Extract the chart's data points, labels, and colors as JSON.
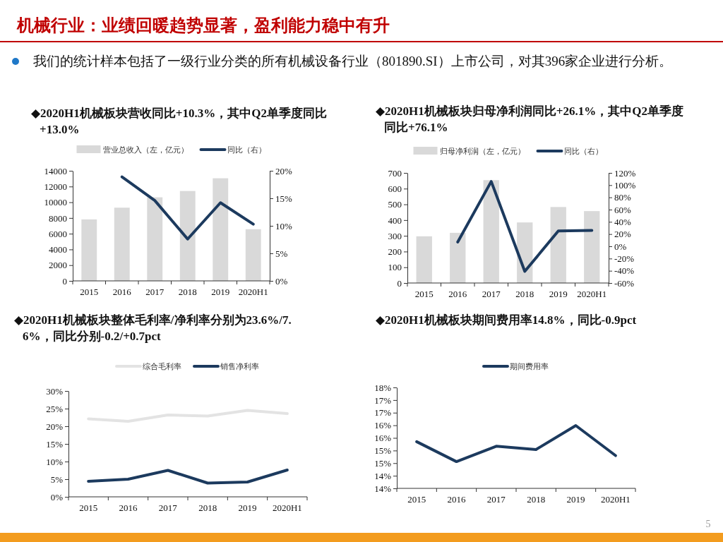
{
  "chart_data": [
    {
      "type": "other",
      "title": "机械行业：业绩回暖趋势显著，盈利能力稳中有升",
      "annotations": [
        "我们的统计样本包括了一级行业分类的所有机械设备行业（801890.SI）上市公司，对其396家企业进行分析。",
        "5"
      ]
    },
    {
      "type": "bar",
      "title": "◆2020H1机械板块营收同比+10.3%，其中Q2单季度同比+13.0%",
      "categories": [
        "2015",
        "2016",
        "2017",
        "2018",
        "2019",
        "2020H1"
      ],
      "legend": "top",
      "series": [
        {
          "name": "营业总收入（左，亿元）",
          "type": "bar",
          "color": "#d9d9d9",
          "values": [
            7820,
            9310,
            10630,
            11430,
            13050,
            6570
          ]
        },
        {
          "name": "同比（右）",
          "type": "line",
          "axis": "y2",
          "color": "#1c3a5e",
          "values": [
            null,
            18.9,
            14.6,
            7.6,
            14.2,
            10.3
          ]
        }
      ],
      "ylim": [
        0,
        14000
      ],
      "yticks": [
        0,
        2000,
        4000,
        6000,
        8000,
        10000,
        12000,
        14000
      ],
      "y2lim": [
        0,
        20
      ],
      "y2ticks": [
        {
          "value": 0,
          "label": "0%"
        },
        {
          "value": 5,
          "label": "5%"
        },
        {
          "value": 10,
          "label": "10%"
        },
        {
          "value": 15,
          "label": "15%"
        },
        {
          "value": 20,
          "label": "20%"
        }
      ]
    },
    {
      "type": "bar",
      "title": "◆2020H1机械板块归母净利润同比+26.1%，其中Q2单季度同比+76.1%",
      "categories": [
        "2015",
        "2016",
        "2017",
        "2018",
        "2019",
        "2020H1"
      ],
      "legend": "top",
      "series": [
        {
          "name": "归母净利润（左，亿元）",
          "type": "bar",
          "color": "#d9d9d9",
          "values": [
            297,
            319,
            654,
            385,
            483,
            457
          ]
        },
        {
          "name": "同比（右）",
          "type": "line",
          "axis": "y2",
          "color": "#1c3a5e",
          "values": [
            null,
            7,
            106,
            -41,
            25,
            26.1
          ]
        }
      ],
      "ylim": [
        0,
        700
      ],
      "yticks": [
        0,
        100,
        200,
        300,
        400,
        500,
        600,
        700
      ],
      "y2lim": [
        -60,
        120
      ],
      "y2ticks": [
        {
          "value": -60,
          "label": "-60%"
        },
        {
          "value": -40,
          "label": "-40%"
        },
        {
          "value": -20,
          "label": "-20%"
        },
        {
          "value": 0,
          "label": "0%"
        },
        {
          "value": 20,
          "label": "20%"
        },
        {
          "value": 40,
          "label": "40%"
        },
        {
          "value": 60,
          "label": "60%"
        },
        {
          "value": 80,
          "label": "80%"
        },
        {
          "value": 100,
          "label": "100%"
        },
        {
          "value": 120,
          "label": "120%"
        }
      ]
    },
    {
      "type": "line",
      "title": "◆2020H1机械板块整体毛利率/净利率分别为23.6%/7.6%，同比分别-0.2/+0.7pct",
      "categories": [
        "2015",
        "2016",
        "2017",
        "2018",
        "2019",
        "2020H1"
      ],
      "legend": "top",
      "series": [
        {
          "name": "综合毛利率",
          "color": "#e3e3e3",
          "values": [
            22.1,
            21.4,
            23.2,
            22.9,
            24.5,
            23.6
          ]
        },
        {
          "name": "销售净利率",
          "color": "#1c3a5e",
          "values": [
            4.4,
            5.0,
            7.5,
            3.9,
            4.2,
            7.6
          ]
        }
      ],
      "ylim": [
        0,
        30
      ],
      "yticks": [
        {
          "value": 0,
          "label": "0%"
        },
        {
          "value": 5,
          "label": "5%"
        },
        {
          "value": 10,
          "label": "10%"
        },
        {
          "value": 15,
          "label": "15%"
        },
        {
          "value": 20,
          "label": "20%"
        },
        {
          "value": 25,
          "label": "25%"
        },
        {
          "value": 30,
          "label": "30%"
        }
      ]
    },
    {
      "type": "line",
      "title": "◆2020H1机械板块期间费用率14.8%，同比-0.9pct",
      "categories": [
        "2015",
        "2016",
        "2017",
        "2018",
        "2019",
        "2020H1"
      ],
      "legend": "top",
      "series": [
        {
          "name": "期间费用率",
          "color": "#1c3a5e",
          "values": [
            15.35,
            14.56,
            15.17,
            15.04,
            15.99,
            14.8
          ]
        }
      ],
      "ylim": [
        13.5,
        17.5
      ],
      "yticks": [
        {
          "value": 13.5,
          "label": "14%"
        },
        {
          "value": 14,
          "label": "14%"
        },
        {
          "value": 14.5,
          "label": "15%"
        },
        {
          "value": 15,
          "label": "15%"
        },
        {
          "value": 15.5,
          "label": "16%"
        },
        {
          "value": 16,
          "label": "16%"
        },
        {
          "value": 16.5,
          "label": "17%"
        },
        {
          "value": 17,
          "label": "17%"
        },
        {
          "value": 17.5,
          "label": "18%"
        }
      ]
    }
  ]
}
